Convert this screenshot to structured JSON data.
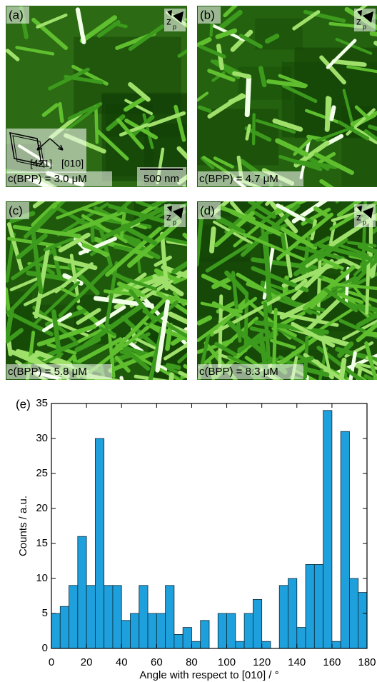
{
  "panels": [
    {
      "label": "(a)",
      "axis_symbol": "z",
      "axis_subscript": "p",
      "concentration": "c(BPP) = 3.0 μM",
      "scale_bar": "500 nm",
      "inset_labels": [
        "[42̄1]",
        "[010]"
      ]
    },
    {
      "label": "(b)",
      "axis_symbol": "z",
      "axis_subscript": "p",
      "concentration": "c(BPP) = 4.7 μM"
    },
    {
      "label": "(c)",
      "axis_symbol": "z",
      "axis_subscript": "p",
      "concentration": "c(BPP) = 5.8 μM"
    },
    {
      "label": "(d)",
      "axis_symbol": "z",
      "axis_subscript": "p",
      "concentration": "c(BPP) = 8.3 μM"
    }
  ],
  "chart_data": {
    "type": "histogram",
    "panel_label": "(e)",
    "xlabel": "Angle with respect to [010] / °",
    "ylabel": "Counts / a.u.",
    "bins": [
      0,
      5,
      10,
      15,
      20,
      25,
      30,
      35,
      40,
      45,
      50,
      55,
      60,
      65,
      70,
      75,
      80,
      85,
      90,
      95,
      100,
      105,
      110,
      115,
      120,
      125,
      130,
      135,
      140,
      145,
      150,
      155,
      160,
      165,
      170,
      175,
      180
    ],
    "counts": [
      5,
      6,
      9,
      16,
      9,
      30,
      9,
      9,
      4,
      5,
      9,
      5,
      5,
      9,
      2,
      3,
      1,
      4,
      0,
      5,
      5,
      1,
      5,
      7,
      1,
      0,
      9,
      10,
      3,
      12,
      12,
      34,
      1,
      31,
      10,
      8
    ],
    "color": "#1ea0dc",
    "xlim": [
      0,
      180
    ],
    "ylim": [
      0,
      35
    ],
    "xticks": [
      0,
      20,
      40,
      60,
      80,
      100,
      120,
      140,
      160,
      180
    ],
    "yticks": [
      0,
      5,
      10,
      15,
      20,
      25,
      30,
      35
    ]
  }
}
